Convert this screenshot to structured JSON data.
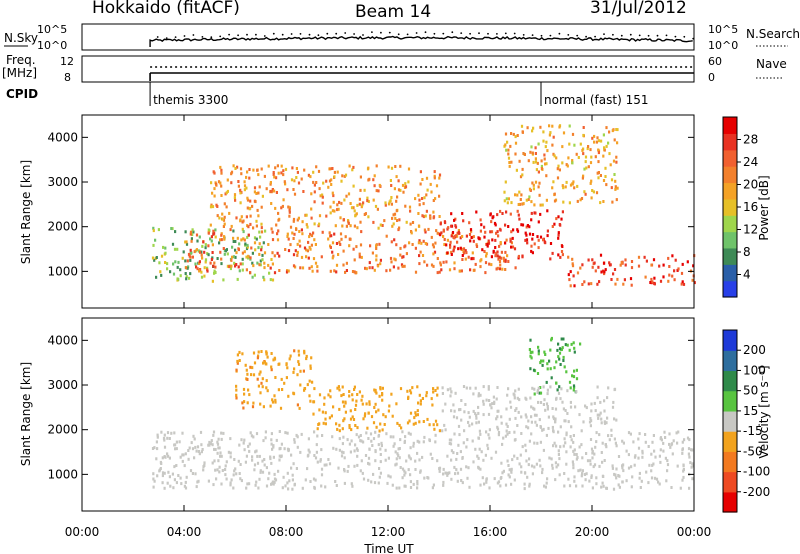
{
  "header": {
    "site": "Hokkaido (fitACF)",
    "beam": "Beam 14",
    "date": "31/Jul/2012"
  },
  "top_panels": {
    "nsky_label": "N.Sky",
    "nsky_ticks": [
      "10^5",
      "10^0"
    ],
    "nsky_right_ticks": [
      "10^5",
      "10^0"
    ],
    "nsearch_label": "N.Search",
    "freq_label": "Freq.",
    "freq_unit": "[MHz]",
    "freq_ticks": [
      "12",
      "8"
    ],
    "nave_ticks": [
      "60",
      "0"
    ],
    "nave_label": "Nave",
    "cpid_label": "CPID",
    "cpid_segments": [
      {
        "label": "themis 3300",
        "start_hour": 2.67
      },
      {
        "label": "normal (fast) 151",
        "start_hour": 18.0
      }
    ]
  },
  "x_axis": {
    "title": "Time UT",
    "ticks": [
      "00:00",
      "04:00",
      "08:00",
      "12:00",
      "16:00",
      "20:00",
      "00:00"
    ],
    "tick_hours": [
      0,
      4,
      8,
      12,
      16,
      20,
      24
    ],
    "range_hours": [
      0,
      24
    ]
  },
  "chart_data": [
    {
      "type": "heatmap",
      "name": "power",
      "ylabel": "Slant Range [km]",
      "yticks": [
        1000,
        2000,
        3000,
        4000
      ],
      "ylim": [
        180,
        4500
      ],
      "xlim_hours": [
        0,
        24
      ],
      "colorbar": {
        "label": "Power [dB]",
        "ticks": [
          "28",
          "24",
          "20",
          "16",
          "12",
          "8",
          "4"
        ],
        "tick_values": [
          28,
          24,
          20,
          16,
          12,
          8,
          4
        ],
        "colors": [
          "#2840e8",
          "#2a5fa8",
          "#3e8a56",
          "#6fc36a",
          "#9fd64c",
          "#e6c028",
          "#f4a226",
          "#f3802c",
          "#f16030",
          "#e83222",
          "#e60000"
        ]
      },
      "echo_regions": [
        {
          "from_hour": 2.7,
          "to_hour": 7.5,
          "range_from": 800,
          "range_to": 2000,
          "power_db": 10
        },
        {
          "from_hour": 4.0,
          "to_hour": 17.0,
          "range_from": 1000,
          "range_to": 2000,
          "power_db": 22
        },
        {
          "from_hour": 5.0,
          "to_hour": 14.0,
          "range_from": 2000,
          "range_to": 3400,
          "power_db": 20
        },
        {
          "from_hour": 14.0,
          "to_hour": 19.0,
          "range_from": 1300,
          "range_to": 2400,
          "power_db": 28
        },
        {
          "from_hour": 19.0,
          "to_hour": 24.0,
          "range_from": 700,
          "range_to": 1400,
          "power_db": 26
        },
        {
          "from_hour": 16.5,
          "to_hour": 21.0,
          "range_from": 2500,
          "range_to": 4300,
          "power_db": 18
        }
      ]
    },
    {
      "type": "heatmap",
      "name": "velocity",
      "ylabel": "Slant Range [km]",
      "yticks": [
        1000,
        2000,
        3000,
        4000
      ],
      "ylim": [
        180,
        4500
      ],
      "xlim_hours": [
        0,
        24
      ],
      "colorbar": {
        "label": "Velocity [m s⁻¹]",
        "ticks": [
          "200",
          "100",
          "50",
          "15",
          "-15",
          "-50",
          "-100",
          "-200"
        ],
        "tick_values": [
          200,
          100,
          50,
          15,
          -15,
          -50,
          -100,
          -200
        ],
        "colors": [
          "#1e3ad8",
          "#2e6e9e",
          "#2f8a4a",
          "#58c440",
          "#c8c8c4",
          "#f2a31e",
          "#f37a20",
          "#ee4a22",
          "#e60000"
        ]
      },
      "echo_regions": [
        {
          "from_hour": 2.7,
          "to_hour": 24.0,
          "range_from": 700,
          "range_to": 2000,
          "velocity": 0
        },
        {
          "from_hour": 6.0,
          "to_hour": 9.0,
          "range_from": 2500,
          "range_to": 3800,
          "velocity": -40
        },
        {
          "from_hour": 9.0,
          "to_hour": 14.0,
          "range_from": 2000,
          "range_to": 3000,
          "velocity": -30
        },
        {
          "from_hour": 17.5,
          "to_hour": 19.5,
          "range_from": 2800,
          "range_to": 4100,
          "velocity": 45
        },
        {
          "from_hour": 14.0,
          "to_hour": 21.0,
          "range_from": 2000,
          "range_to": 3000,
          "velocity": 0
        }
      ]
    }
  ]
}
